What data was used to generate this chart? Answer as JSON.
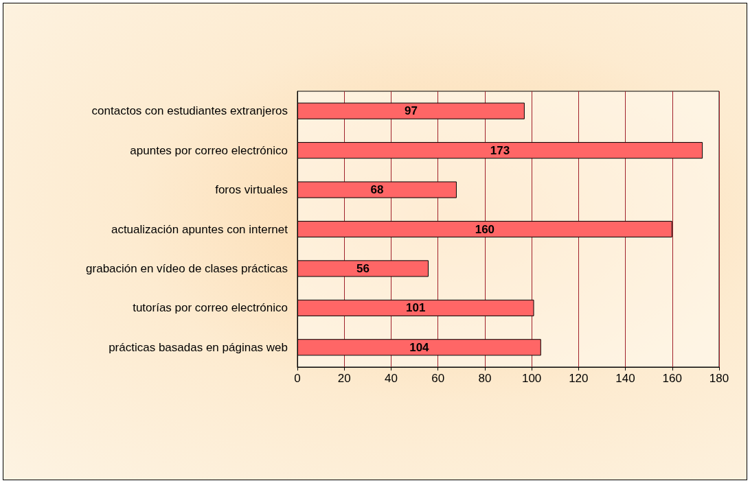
{
  "chart_data": {
    "type": "bar",
    "orientation": "horizontal",
    "categories": [
      "contactos con estudiantes extranjeros",
      "apuntes por correo electrónico",
      "foros virtuales",
      "actualización apuntes con internet",
      "grabación en vídeo de clases prácticas",
      "tutorías por correo electrónico",
      "prácticas basadas en páginas web"
    ],
    "values": [
      97,
      173,
      68,
      160,
      56,
      101,
      104
    ],
    "color": "#ff6666",
    "xlim": [
      0,
      180
    ],
    "xticks": [
      0,
      20,
      40,
      60,
      80,
      100,
      120,
      140,
      160,
      180
    ],
    "grid": "x",
    "data_labels": true
  }
}
